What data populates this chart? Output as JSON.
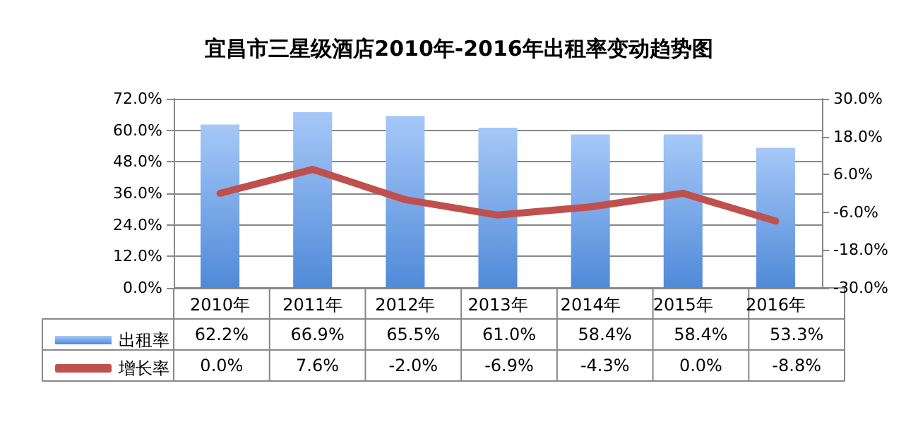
{
  "chart_data": {
    "type": "bar",
    "title": "宜昌市三星级酒店2010年-2016年出租率变动趋势图",
    "categories": [
      "2010年",
      "2011年",
      "2012年",
      "2013年",
      "2014年",
      "2015年",
      "2016年"
    ],
    "series": [
      {
        "name": "出租率",
        "color": "#4f8ad8",
        "values": [
          62.2,
          66.9,
          65.5,
          61.0,
          58.4,
          58.4,
          53.3
        ],
        "value_labels": [
          "62.2%",
          "66.9%",
          "65.5%",
          "61.0%",
          "58.4%",
          "58.4%",
          "53.3%"
        ]
      },
      {
        "name": "增长率",
        "type": "line",
        "axis": "y2",
        "color": "#c0504d",
        "values": [
          0.0,
          7.6,
          -2.0,
          -6.9,
          -4.3,
          0.0,
          -8.8
        ],
        "value_labels": [
          "0.0%",
          "7.6%",
          "-2.0%",
          "-6.9%",
          "-4.3%",
          "0.0%",
          "-8.8%"
        ]
      }
    ],
    "ylim": [
      0,
      72
    ],
    "yticks": [
      {
        "value": 0,
        "label": "0.0%"
      },
      {
        "value": 12,
        "label": "12.0%"
      },
      {
        "value": 24,
        "label": "24.0%"
      },
      {
        "value": 36,
        "label": "36.0%"
      },
      {
        "value": 48,
        "label": "48.0%"
      },
      {
        "value": 60,
        "label": "60.0%"
      },
      {
        "value": 72,
        "label": "72.0%"
      }
    ],
    "y2lim": [
      -30,
      30
    ],
    "y2ticks": [
      {
        "value": -30,
        "label": "-30.0%"
      },
      {
        "value": -18,
        "label": "-18.0%"
      },
      {
        "value": -6,
        "label": "-6.0%"
      },
      {
        "value": 6,
        "label": "6.0%"
      },
      {
        "value": 18,
        "label": "18.0%"
      },
      {
        "value": 30,
        "label": "30.0%"
      }
    ],
    "grid": "y",
    "legend": "bottom left",
    "marker": "none",
    "line_style": "solid"
  }
}
